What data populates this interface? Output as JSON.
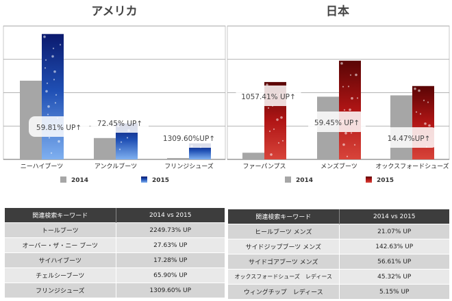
{
  "chart_data": [
    {
      "type": "bar",
      "title": "アメリカ",
      "categories": [
        "ニーハイブーツ",
        "アンクルブーツ",
        "フリンジシューズ"
      ],
      "series": [
        {
          "name": "2014",
          "values": [
            59,
            16,
            1
          ]
        },
        {
          "name": "2015",
          "values": [
            94,
            27,
            12
          ]
        }
      ],
      "annotations": [
        "59.81% UP↑",
        "72.45% UP↑",
        "1309.60%UP↑"
      ],
      "ylim": [
        0,
        100
      ],
      "grid": true,
      "legend": "bottom",
      "colors": {
        "2014": "#a6a6a6",
        "2015": "#1f4fb4"
      }
    },
    {
      "type": "bar",
      "title": "日本",
      "categories": [
        "ファーパンプス",
        "メンズブーツ",
        "オックスフォードシューズ"
      ],
      "series": [
        {
          "name": "2014",
          "values": [
            5,
            47,
            48
          ]
        },
        {
          "name": "2015",
          "values": [
            58,
            74,
            55
          ]
        }
      ],
      "annotations": [
        "1057.41% UP↑",
        "59.45% UP↑",
        "14.47%UP↑"
      ],
      "ylim": [
        0,
        100
      ],
      "grid": true,
      "legend": "bottom",
      "colors": {
        "2014": "#a6a6a6",
        "2015": "#b01515"
      }
    }
  ],
  "tables": {
    "usa": {
      "headers": [
        "関連検索キーワード",
        "2014 vs 2015"
      ],
      "rows": [
        [
          "トールブーツ",
          "2249.73% UP"
        ],
        [
          "オーバー・ザ・ニー ブーツ",
          "27.63% UP"
        ],
        [
          "サイハイブーツ",
          "17.28% UP"
        ],
        [
          "チェルシーブーツ",
          "65.90% UP"
        ],
        [
          "フリンジシューズ",
          "1309.60% UP"
        ]
      ]
    },
    "japan": {
      "headers": [
        "関連検索キーワード",
        "2014 vs 2015"
      ],
      "rows": [
        [
          "ヒールブーツ メンズ",
          "21.07% UP"
        ],
        [
          "サイドジップブーツ メンズ",
          "142.63% UP"
        ],
        [
          "サイドゴアブーツ メンズ",
          "56.61% UP"
        ],
        [
          "オックスフォードシューズ　レディース",
          "45.32% UP"
        ],
        [
          "ウィングチップ　レディース",
          "5.15% UP"
        ]
      ]
    }
  }
}
